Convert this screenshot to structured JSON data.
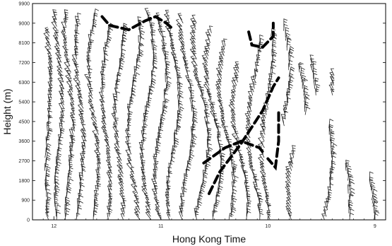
{
  "chart_data": {
    "type": "scatter",
    "title": "",
    "xlabel": "Hong Kong Time",
    "ylabel": "Height (m)",
    "xlim": [
      12.2,
      8.9
    ],
    "ylim": [
      0,
      9900
    ],
    "x_reversed": true,
    "x_ticks": [
      {
        "value": 12,
        "label": "12"
      },
      {
        "value": 11,
        "label": "11"
      },
      {
        "value": 10,
        "label": "10"
      },
      {
        "value": 9,
        "label": "9"
      }
    ],
    "y_ticks": [
      {
        "value": 0,
        "label": "0"
      },
      {
        "value": 900,
        "label": "900"
      },
      {
        "value": 1800,
        "label": "1800"
      },
      {
        "value": 2700,
        "label": "2700"
      },
      {
        "value": 3600,
        "label": "3600"
      },
      {
        "value": 4500,
        "label": "4500"
      },
      {
        "value": 5400,
        "label": "5400"
      },
      {
        "value": 6300,
        "label": "6300"
      },
      {
        "value": 7200,
        "label": "7200"
      },
      {
        "value": 8100,
        "label": "8100"
      },
      {
        "value": 9000,
        "label": "9000"
      },
      {
        "value": 9900,
        "label": "9900"
      }
    ],
    "grid": false,
    "legend": "none",
    "wind_barb_profiles": [
      {
        "time": 12.05,
        "top": 8600,
        "bottom": 0,
        "sway": 0.03
      },
      {
        "time": 11.95,
        "top": 9300,
        "bottom": 0,
        "sway": 0.04
      },
      {
        "time": 11.85,
        "top": 9300,
        "bottom": 0,
        "sway": 0.04
      },
      {
        "time": 11.75,
        "top": 9200,
        "bottom": 0,
        "sway": 0.04
      },
      {
        "time": 11.62,
        "top": 9300,
        "bottom": 0,
        "sway": 0.05
      },
      {
        "time": 11.5,
        "top": 8800,
        "bottom": 0,
        "sway": 0.04
      },
      {
        "time": 11.38,
        "top": 8700,
        "bottom": 0,
        "sway": 0.04
      },
      {
        "time": 11.25,
        "top": 9000,
        "bottom": 0,
        "sway": 0.05
      },
      {
        "time": 11.12,
        "top": 9300,
        "bottom": 0,
        "sway": 0.05
      },
      {
        "time": 11.0,
        "top": 9200,
        "bottom": 0,
        "sway": 0.05
      },
      {
        "time": 10.88,
        "top": 9300,
        "bottom": 0,
        "sway": 0.05
      },
      {
        "time": 10.75,
        "top": 9200,
        "bottom": 0,
        "sway": 0.05
      },
      {
        "time": 10.62,
        "top": 9100,
        "bottom": 0,
        "sway": 0.06
      },
      {
        "time": 10.5,
        "top": 8600,
        "bottom": 0,
        "sway": 0.06
      },
      {
        "time": 10.38,
        "top": 8000,
        "bottom": 0,
        "sway": 0.06
      },
      {
        "time": 10.25,
        "top": 7000,
        "bottom": 0,
        "sway": 0.06
      },
      {
        "time": 10.12,
        "top": 8100,
        "bottom": 0,
        "sway": 0.05
      },
      {
        "time": 10.0,
        "top": 8500,
        "bottom": 0,
        "sway": 0.04
      },
      {
        "time": 9.85,
        "top": 8900,
        "bottom": 4300,
        "sway": 0.05
      },
      {
        "time": 9.75,
        "top": 3000,
        "bottom": 0,
        "sway": 0.04
      },
      {
        "time": 9.7,
        "top": 7000,
        "bottom": 4800,
        "sway": 0.05
      },
      {
        "time": 9.55,
        "top": 7300,
        "bottom": 5700,
        "sway": 0.04
      },
      {
        "time": 9.45,
        "top": 4300,
        "bottom": 0,
        "sway": 0.05
      },
      {
        "time": 9.35,
        "top": 6600,
        "bottom": 5700,
        "sway": 0.04
      },
      {
        "time": 9.28,
        "top": 2500,
        "bottom": 0,
        "sway": 0.04
      },
      {
        "time": 9.05,
        "top": 1900,
        "bottom": 0,
        "sway": 0.04
      }
    ],
    "highlight_outlines": [
      {
        "style": "dashed",
        "points": [
          [
            11.55,
            9300
          ],
          [
            11.48,
            8900
          ],
          [
            11.3,
            8700
          ],
          [
            11.15,
            9100
          ],
          [
            11.05,
            9300
          ],
          [
            10.95,
            9000
          ],
          [
            10.88,
            8700
          ]
        ]
      },
      {
        "style": "dashed",
        "points": [
          [
            10.18,
            8600
          ],
          [
            10.15,
            8000
          ],
          [
            10.05,
            7900
          ],
          [
            9.95,
            8400
          ],
          [
            9.95,
            9000
          ]
        ]
      },
      {
        "style": "dashed",
        "points": [
          [
            10.55,
            1200
          ],
          [
            10.45,
            2200
          ],
          [
            10.25,
            3500
          ],
          [
            10.05,
            5000
          ],
          [
            9.95,
            6100
          ],
          [
            9.9,
            6500
          ]
        ]
      },
      {
        "style": "dashed",
        "points": [
          [
            9.9,
            4900
          ],
          [
            9.9,
            3600
          ],
          [
            9.93,
            2400
          ],
          [
            10.0,
            2800
          ]
        ]
      },
      {
        "style": "dashed",
        "points": [
          [
            10.6,
            2600
          ],
          [
            10.4,
            3300
          ],
          [
            10.25,
            3600
          ],
          [
            10.08,
            3300
          ],
          [
            10.03,
            3000
          ]
        ]
      }
    ]
  }
}
